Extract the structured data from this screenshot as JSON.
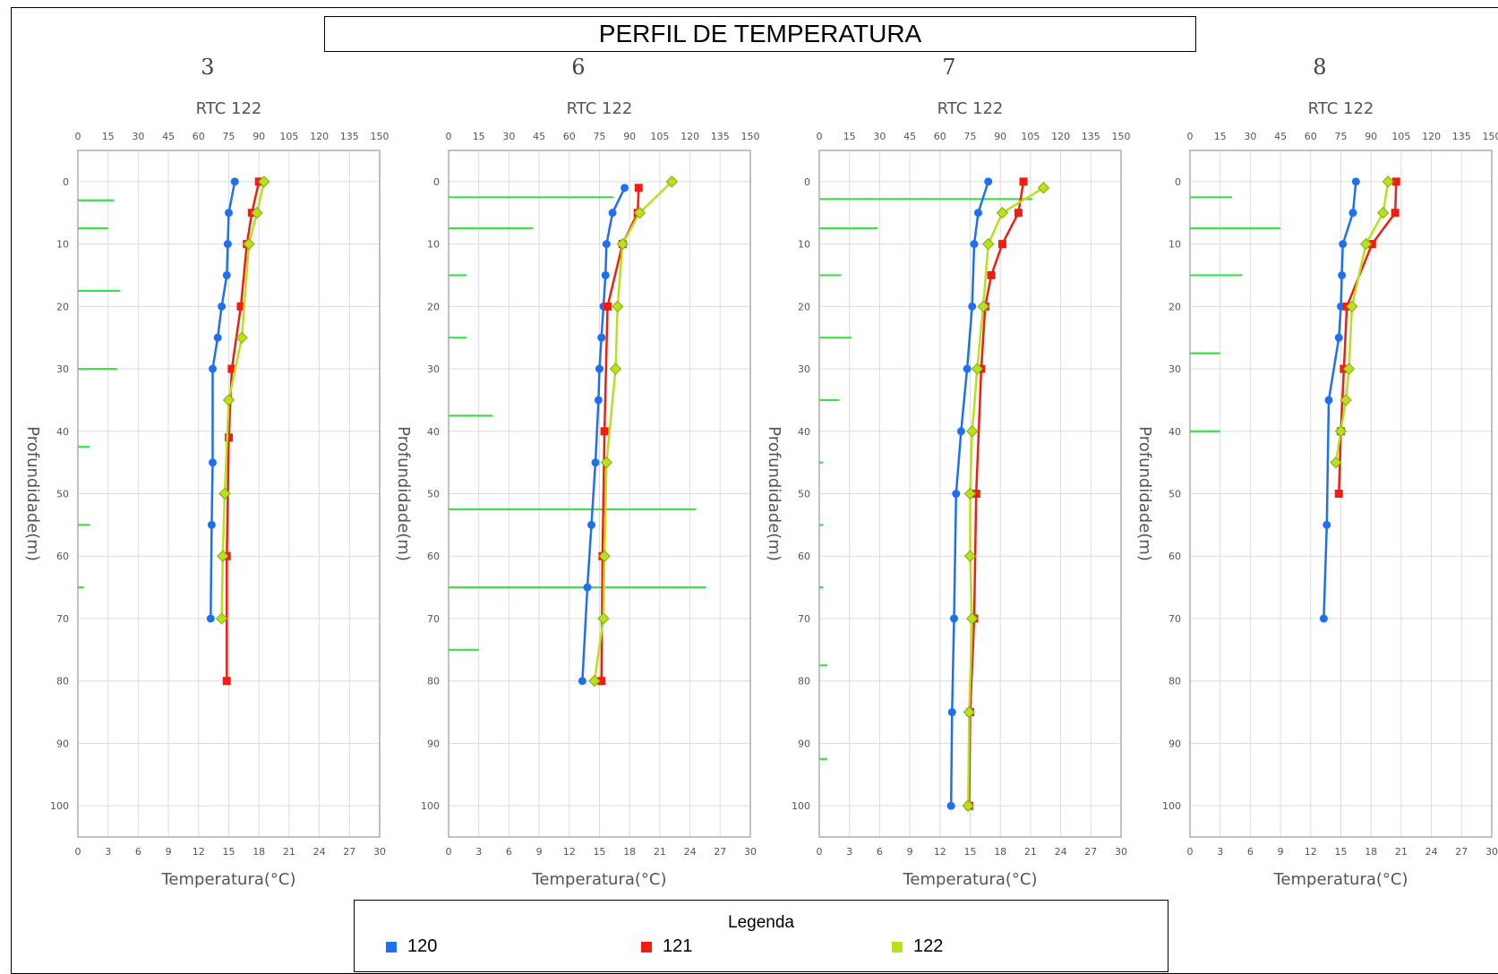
{
  "title": "PERFIL DE TEMPERATURA",
  "legend": {
    "title": "Legenda",
    "items": [
      {
        "label": "120",
        "color": "#1e6ff2"
      },
      {
        "label": "121",
        "color": "#f41c12"
      },
      {
        "label": "122",
        "color": "#b5e319"
      }
    ]
  },
  "chart_data": [
    {
      "type": "line",
      "panel_label": "3",
      "title": "RTC 122",
      "xlabel": "Temperatura(°C)",
      "ylabel": "Profundidade(m)",
      "xlim": [
        0,
        30
      ],
      "x_ticks": [
        0,
        3,
        6,
        9,
        12,
        15,
        18,
        21,
        24,
        27,
        30
      ],
      "x2lim": [
        0,
        150
      ],
      "x2_ticks": [
        0,
        15,
        30,
        45,
        60,
        75,
        90,
        105,
        120,
        135,
        150
      ],
      "ylim": [
        -5,
        105
      ],
      "y_ticks": [
        0,
        10,
        20,
        30,
        40,
        50,
        60,
        70,
        80,
        90,
        100
      ],
      "series": [
        {
          "name": "120",
          "color": "#1e6ff2",
          "marker": "circle",
          "points": [
            [
              15.6,
              0
            ],
            [
              15.0,
              5
            ],
            [
              14.9,
              10
            ],
            [
              14.8,
              15
            ],
            [
              14.3,
              20
            ],
            [
              13.9,
              25
            ],
            [
              13.4,
              30
            ],
            [
              13.4,
              45
            ],
            [
              13.3,
              55
            ],
            [
              13.2,
              70
            ]
          ]
        },
        {
          "name": "121",
          "color": "#f41c12",
          "marker": "square",
          "points": [
            [
              18.0,
              0
            ],
            [
              17.3,
              5
            ],
            [
              16.8,
              10
            ],
            [
              16.2,
              20
            ],
            [
              15.3,
              30
            ],
            [
              15.0,
              41
            ],
            [
              14.8,
              60
            ],
            [
              14.8,
              80
            ]
          ]
        },
        {
          "name": "122",
          "color": "#b5e319",
          "marker": "diamond",
          "points": [
            [
              18.5,
              0
            ],
            [
              17.8,
              5
            ],
            [
              17.0,
              10
            ],
            [
              16.3,
              25
            ],
            [
              15.0,
              35
            ],
            [
              14.6,
              50
            ],
            [
              14.4,
              60
            ],
            [
              14.3,
              70
            ]
          ]
        }
      ],
      "bars": [
        [
          18,
          3
        ],
        [
          15,
          7.5
        ],
        [
          21,
          17.5
        ],
        [
          19.5,
          30
        ],
        [
          6,
          42.5
        ],
        [
          6,
          55
        ],
        [
          3,
          65
        ]
      ]
    },
    {
      "type": "line",
      "panel_label": "6",
      "title": "RTC 122",
      "xlabel": "Temperatura(°C)",
      "ylabel": "Profundidade(m)",
      "xlim": [
        0,
        30
      ],
      "x_ticks": [
        0,
        3,
        6,
        9,
        12,
        15,
        18,
        21,
        24,
        27,
        30
      ],
      "x2lim": [
        0,
        150
      ],
      "x2_ticks": [
        0,
        15,
        30,
        45,
        60,
        75,
        90,
        105,
        120,
        135,
        150
      ],
      "ylim": [
        -5,
        105
      ],
      "y_ticks": [
        0,
        10,
        20,
        30,
        40,
        50,
        60,
        70,
        80,
        90,
        100
      ],
      "series": [
        {
          "name": "120",
          "color": "#1e6ff2",
          "marker": "circle",
          "points": [
            [
              17.5,
              1
            ],
            [
              16.3,
              5
            ],
            [
              15.7,
              10
            ],
            [
              15.6,
              15
            ],
            [
              15.4,
              20
            ],
            [
              15.2,
              25
            ],
            [
              15.0,
              30
            ],
            [
              14.9,
              35
            ],
            [
              14.6,
              45
            ],
            [
              14.2,
              55
            ],
            [
              13.8,
              65
            ],
            [
              13.3,
              80
            ]
          ]
        },
        {
          "name": "121",
          "color": "#f41c12",
          "marker": "square",
          "points": [
            [
              18.9,
              1
            ],
            [
              18.8,
              5
            ],
            [
              17.3,
              10
            ],
            [
              15.8,
              20
            ],
            [
              15.5,
              40
            ],
            [
              15.3,
              60
            ],
            [
              15.2,
              80
            ]
          ]
        },
        {
          "name": "122",
          "color": "#b5e319",
          "marker": "diamond",
          "points": [
            [
              22.2,
              0
            ],
            [
              19.0,
              5
            ],
            [
              17.3,
              10
            ],
            [
              16.8,
              20
            ],
            [
              16.6,
              30
            ],
            [
              15.7,
              45
            ],
            [
              15.5,
              60
            ],
            [
              15.4,
              70
            ],
            [
              14.5,
              80
            ]
          ]
        }
      ],
      "bars": [
        [
          82,
          2.5
        ],
        [
          42,
          7.5
        ],
        [
          9,
          15
        ],
        [
          9,
          25
        ],
        [
          22,
          37.5
        ],
        [
          123,
          52.5
        ],
        [
          128,
          65
        ],
        [
          15,
          75
        ]
      ]
    },
    {
      "type": "line",
      "panel_label": "7",
      "title": "RTC 122",
      "xlabel": "Temperatura(°C)",
      "ylabel": "Profundidade(m)",
      "xlim": [
        0,
        30
      ],
      "x_ticks": [
        0,
        3,
        6,
        9,
        12,
        15,
        18,
        21,
        24,
        27,
        30
      ],
      "x2lim": [
        0,
        150
      ],
      "x2_ticks": [
        0,
        15,
        30,
        45,
        60,
        75,
        90,
        105,
        120,
        135,
        150
      ],
      "ylim": [
        -5,
        105
      ],
      "y_ticks": [
        0,
        10,
        20,
        30,
        40,
        50,
        60,
        70,
        80,
        90,
        100
      ],
      "series": [
        {
          "name": "120",
          "color": "#1e6ff2",
          "marker": "circle",
          "points": [
            [
              16.8,
              0
            ],
            [
              15.8,
              5
            ],
            [
              15.4,
              10
            ],
            [
              15.2,
              20
            ],
            [
              14.7,
              30
            ],
            [
              14.1,
              40
            ],
            [
              13.6,
              50
            ],
            [
              13.4,
              70
            ],
            [
              13.2,
              85
            ],
            [
              13.1,
              100
            ]
          ]
        },
        {
          "name": "121",
          "color": "#f41c12",
          "marker": "square",
          "points": [
            [
              20.3,
              0
            ],
            [
              19.8,
              5
            ],
            [
              18.2,
              10
            ],
            [
              17.1,
              15
            ],
            [
              16.5,
              20
            ],
            [
              16.1,
              30
            ],
            [
              15.6,
              50
            ],
            [
              15.4,
              70
            ],
            [
              15.0,
              85
            ],
            [
              14.9,
              100
            ]
          ]
        },
        {
          "name": "122",
          "color": "#b5e319",
          "marker": "diamond",
          "points": [
            [
              22.3,
              1
            ],
            [
              18.2,
              5
            ],
            [
              16.8,
              10
            ],
            [
              16.3,
              20
            ],
            [
              15.7,
              30
            ],
            [
              15.2,
              40
            ],
            [
              15.0,
              50
            ],
            [
              15.0,
              60
            ],
            [
              15.2,
              70
            ],
            [
              14.9,
              85
            ],
            [
              14.8,
              100
            ]
          ]
        }
      ],
      "bars": [
        [
          106,
          2.8
        ],
        [
          29,
          7.5
        ],
        [
          11,
          15
        ],
        [
          16,
          25
        ],
        [
          10,
          35
        ],
        [
          2,
          45
        ],
        [
          2,
          55
        ],
        [
          2,
          65
        ],
        [
          4,
          77.5
        ],
        [
          4,
          92.5
        ]
      ]
    },
    {
      "type": "line",
      "panel_label": "8",
      "title": "RTC 122",
      "xlabel": "Temperatura(°C)",
      "ylabel": "Profundidade(m)",
      "xlim": [
        0,
        30
      ],
      "x_ticks": [
        0,
        3,
        6,
        9,
        12,
        15,
        18,
        21,
        24,
        27,
        30
      ],
      "x2lim": [
        0,
        150
      ],
      "x2_ticks": [
        0,
        15,
        30,
        45,
        60,
        75,
        90,
        105,
        120,
        135,
        150
      ],
      "ylim": [
        -5,
        105
      ],
      "y_ticks": [
        0,
        10,
        20,
        30,
        40,
        50,
        60,
        70,
        80,
        90,
        100
      ],
      "series": [
        {
          "name": "120",
          "color": "#1e6ff2",
          "marker": "circle",
          "points": [
            [
              16.5,
              0
            ],
            [
              16.2,
              5
            ],
            [
              15.2,
              10
            ],
            [
              15.1,
              15
            ],
            [
              15.0,
              20
            ],
            [
              14.8,
              25
            ],
            [
              13.8,
              35
            ],
            [
              13.6,
              55
            ],
            [
              13.3,
              70
            ]
          ]
        },
        {
          "name": "121",
          "color": "#f41c12",
          "marker": "square",
          "points": [
            [
              20.5,
              0
            ],
            [
              20.4,
              5
            ],
            [
              18.1,
              10
            ],
            [
              15.6,
              20
            ],
            [
              15.3,
              30
            ],
            [
              15.0,
              40
            ],
            [
              14.8,
              50
            ]
          ]
        },
        {
          "name": "122",
          "color": "#b5e319",
          "marker": "diamond",
          "points": [
            [
              19.7,
              0
            ],
            [
              19.2,
              5
            ],
            [
              17.5,
              10
            ],
            [
              16.1,
              20
            ],
            [
              15.8,
              30
            ],
            [
              15.5,
              35
            ],
            [
              15.0,
              40
            ],
            [
              14.5,
              45
            ]
          ]
        }
      ],
      "bars": [
        [
          21,
          2.5
        ],
        [
          45,
          7.5
        ],
        [
          26,
          15
        ],
        [
          15,
          27.5
        ],
        [
          15,
          40
        ]
      ]
    }
  ]
}
